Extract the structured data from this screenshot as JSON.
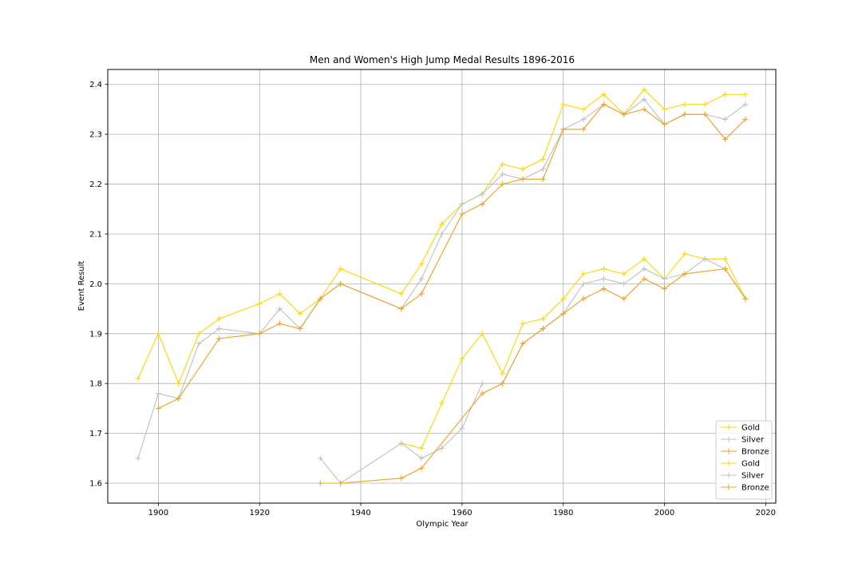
{
  "chart_data": {
    "type": "line",
    "title": "Men and Women's High Jump Medal Results 1896-2016",
    "xlabel": "Olympic Year",
    "ylabel": "Event Result",
    "xlim": [
      1890,
      2022
    ],
    "ylim": [
      1.56,
      2.43
    ],
    "xticks": [
      1900,
      1920,
      1940,
      1960,
      1980,
      2000,
      2020
    ],
    "yticks": [
      1.6,
      1.7,
      1.8,
      1.9,
      2.0,
      2.1,
      2.2,
      2.3,
      2.4
    ],
    "grid": true,
    "legend_position": "lower-right",
    "colors": {
      "gold": "#FFD700",
      "silver": "#C0C0C0",
      "bronze": "#F0A020"
    },
    "series": [
      {
        "name": "Gold",
        "color": "#FFD700",
        "x": [
          1896,
          1900,
          1904,
          1908,
          1912,
          1920,
          1924,
          1928,
          1932,
          1936,
          1948,
          1952,
          1956,
          1960,
          1964,
          1968,
          1972,
          1976,
          1980,
          1984,
          1988,
          1992,
          1996,
          2000,
          2004,
          2008,
          2012,
          2016
        ],
        "y": [
          1.81,
          1.9,
          1.8,
          1.9,
          1.93,
          1.96,
          1.98,
          1.94,
          1.97,
          2.03,
          1.98,
          2.04,
          2.12,
          2.16,
          2.18,
          2.24,
          2.23,
          2.25,
          2.36,
          2.35,
          2.38,
          2.34,
          2.39,
          2.35,
          2.36,
          2.36,
          2.38,
          2.38
        ]
      },
      {
        "name": "Silver",
        "color": "#C0C0C0",
        "x": [
          1896,
          1900,
          1904,
          1908,
          1912,
          1920,
          1924,
          1928,
          1932,
          1936,
          1948,
          1952,
          1956,
          1960,
          1964,
          1968,
          1972,
          1976,
          1980,
          1984,
          1988,
          1992,
          1996,
          2000,
          2004,
          2008,
          2012,
          2016
        ],
        "y": [
          1.65,
          1.78,
          1.77,
          1.88,
          1.91,
          1.9,
          1.95,
          1.91,
          1.97,
          2.0,
          1.95,
          2.01,
          2.1,
          2.16,
          2.18,
          2.22,
          2.21,
          2.23,
          2.31,
          2.33,
          2.36,
          2.34,
          2.37,
          2.32,
          2.34,
          2.34,
          2.33,
          2.36
        ]
      },
      {
        "name": "Bronze",
        "color": "#F0A020",
        "x": [
          1900,
          1904,
          1912,
          1920,
          1924,
          1928,
          1932,
          1936,
          1948,
          1952,
          1960,
          1964,
          1968,
          1972,
          1976,
          1980,
          1984,
          1988,
          1992,
          1996,
          2000,
          2004,
          2008,
          2012,
          2016
        ],
        "y": [
          1.75,
          1.77,
          1.89,
          1.9,
          1.92,
          1.91,
          1.97,
          2.0,
          1.95,
          1.98,
          2.14,
          2.16,
          2.2,
          2.21,
          2.21,
          2.31,
          2.31,
          2.36,
          2.34,
          2.35,
          2.32,
          2.34,
          2.34,
          2.29,
          2.33
        ]
      },
      {
        "name": "Gold",
        "color": "#FFD700",
        "x": [
          1948,
          1952,
          1956,
          1960,
          1964,
          1968,
          1972,
          1976,
          1980,
          1984,
          1988,
          1992,
          1996,
          2000,
          2004,
          2008,
          2012,
          2016
        ],
        "y": [
          1.68,
          1.67,
          1.76,
          1.85,
          1.9,
          1.82,
          1.92,
          1.93,
          1.97,
          2.02,
          2.03,
          2.02,
          2.05,
          2.01,
          2.06,
          2.05,
          2.05,
          1.97
        ]
      },
      {
        "name": "Silver",
        "color": "#C0C0C0",
        "x": [
          1932,
          1936,
          1948,
          1952,
          1956,
          1960,
          1964,
          1968,
          1972,
          1976,
          1980,
          1984,
          1988,
          1992,
          1996,
          2000,
          2004,
          2008,
          2012,
          2016
        ],
        "y": [
          1.65,
          1.6,
          1.68,
          1.65,
          1.67,
          1.71,
          1.8,
          1.8,
          1.88,
          1.91,
          1.94,
          2.0,
          2.01,
          2.0,
          2.03,
          2.01,
          2.02,
          2.05,
          2.03,
          1.97
        ]
      },
      {
        "name": "Bronze",
        "color": "#F0A020",
        "x": [
          1932,
          1936,
          1948,
          1952,
          1964,
          1968,
          1972,
          1976,
          1980,
          1984,
          1988,
          1992,
          1996,
          2000,
          2004,
          2012,
          2016
        ],
        "y": [
          1.6,
          1.6,
          1.61,
          1.63,
          1.78,
          1.8,
          1.88,
          1.91,
          1.94,
          1.97,
          1.99,
          1.97,
          2.01,
          1.99,
          2.02,
          2.03,
          1.97
        ]
      }
    ]
  }
}
